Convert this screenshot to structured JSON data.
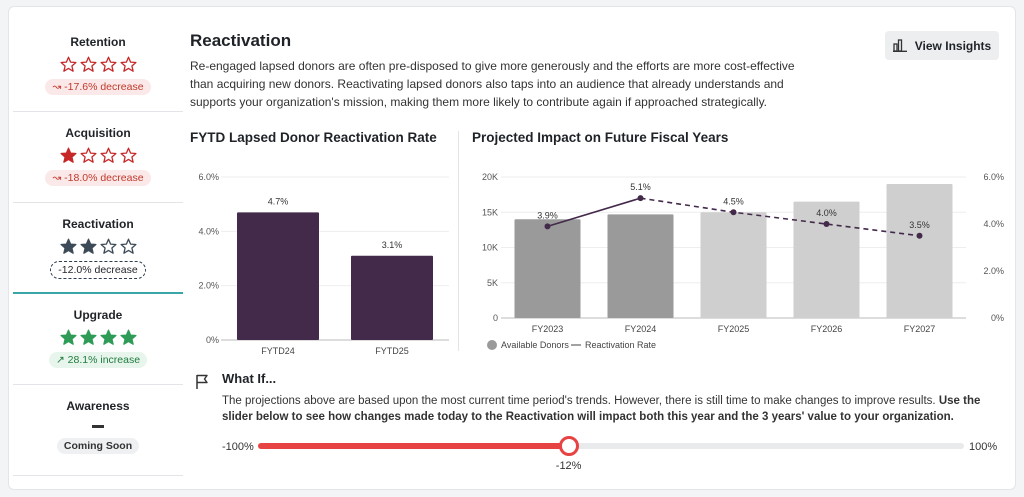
{
  "sidebar": {
    "metrics": [
      {
        "title": "Retention",
        "stars_filled": 0,
        "star_color": "#c62828",
        "badge": "↝ -17.6% decrease"
      },
      {
        "title": "Acquisition",
        "stars_filled": 1,
        "star_color": "#c62828",
        "badge": "↝ -18.0% decrease"
      },
      {
        "title": "Reactivation",
        "stars_filled": 2,
        "star_color": "#3d4a57",
        "badge": "-12.0% decrease"
      },
      {
        "title": "Upgrade",
        "stars_filled": 4,
        "star_color": "#2e9c57",
        "badge": "↗ 28.1% increase"
      },
      {
        "title": "Awareness",
        "badge": "Coming Soon"
      }
    ]
  },
  "header": {
    "title": "Reactivation",
    "description": "Re-engaged lapsed donors are often pre-disposed to give more generously and the efforts are more cost-effective than acquiring new donors. Reactivating lapsed donors also taps into an audience that already understands and supports your organization's mission, making them more likely to contribute again if approached strategically.",
    "view_insights": "View Insights"
  },
  "chart_data": [
    {
      "type": "bar",
      "title": "FYTD Lapsed Donor Reactivation Rate",
      "categories": [
        "FYTD24",
        "FYTD25"
      ],
      "values": [
        4.7,
        3.1
      ],
      "value_labels": [
        "4.7%",
        "3.1%"
      ],
      "y_ticks": [
        "0%",
        "2.0%",
        "4.0%",
        "6.0%"
      ],
      "ylim": [
        0,
        6
      ],
      "color": "#432a4b"
    },
    {
      "type": "bar+line",
      "title": "Projected Impact on Future Fiscal Years",
      "categories": [
        "FY2023",
        "FY2024",
        "FY2025",
        "FY2026",
        "FY2027"
      ],
      "bar_values": [
        14000,
        14700,
        15000,
        16500,
        19000
      ],
      "bar_colors": [
        "#9a9a9a",
        "#9a9a9a",
        "#cfcfcf",
        "#cfcfcf",
        "#cfcfcf"
      ],
      "line_values": [
        3.9,
        5.1,
        4.5,
        4.0,
        3.5
      ],
      "line_labels": [
        "3.9%",
        "5.1%",
        "4.5%",
        "4.0%",
        "3.5%"
      ],
      "left_ticks": [
        "0",
        "5K",
        "10K",
        "15K",
        "20K"
      ],
      "left_ylim": [
        0,
        20000
      ],
      "right_ticks": [
        "0%",
        "2.0%",
        "4.0%",
        "6.0%"
      ],
      "right_ylim": [
        0,
        6
      ],
      "line_color": "#432a4b",
      "legend": [
        "Available Donors",
        "Reactivation Rate"
      ]
    }
  ],
  "whatif": {
    "title": "What If...",
    "desc_normal": "The projections above are based upon the most current time period's trends. However, there is still time to make changes to improve results. ",
    "desc_bold": "Use the slider below to see how changes made today to the Reactivation will impact both this year and the 3 years' value to your organization.",
    "slider_min": "-100%",
    "slider_max": "100%",
    "slider_value": -12,
    "slider_label": "-12%"
  }
}
